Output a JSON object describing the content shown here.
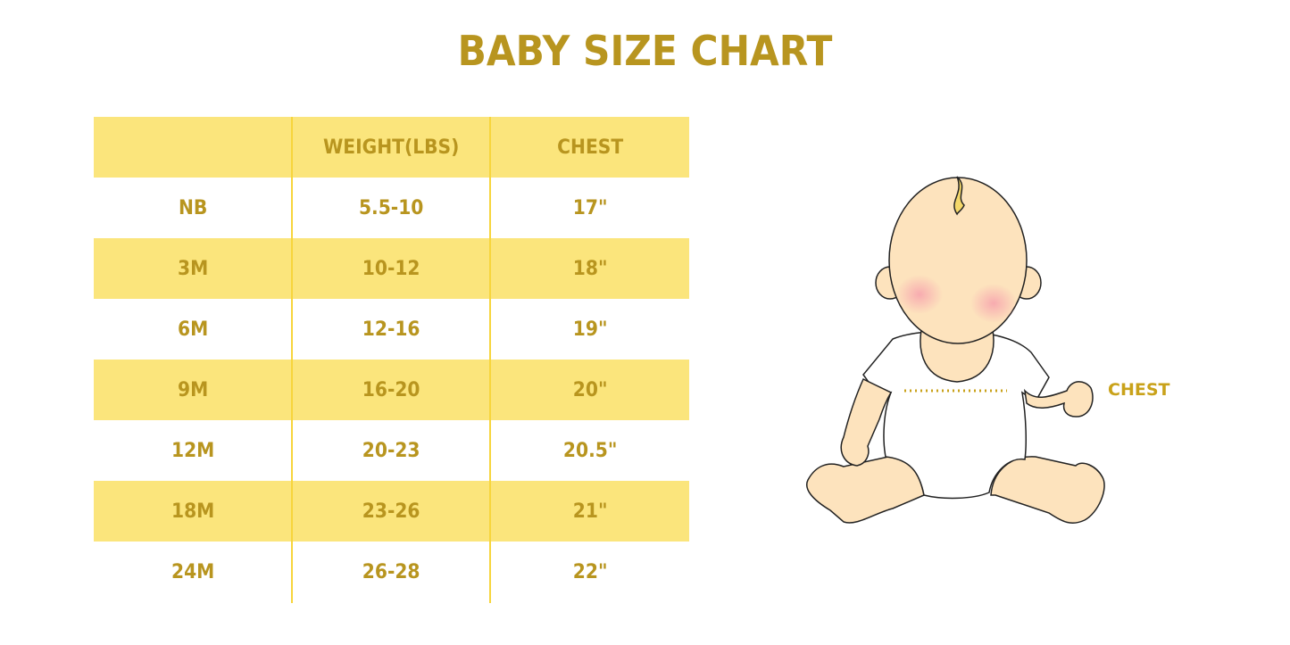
{
  "title": "BABY SIZE CHART",
  "table": {
    "headers": [
      "",
      "WEIGHT(LBS)",
      "CHEST"
    ],
    "rows": [
      [
        "NB",
        "5.5-10",
        "17\""
      ],
      [
        "3M",
        "10-12",
        "18\""
      ],
      [
        "6M",
        "12-16",
        "19\""
      ],
      [
        "9M",
        "16-20",
        "20\""
      ],
      [
        "12M",
        "20-23",
        "20.5\""
      ],
      [
        "18M",
        "23-26",
        "21\""
      ],
      [
        "24M",
        "26-28",
        "22\""
      ]
    ]
  },
  "illustration": {
    "chest_label": "CHEST"
  },
  "colors": {
    "accent_text": "#b8951f",
    "row_highlight": "#fbe57c",
    "divider": "#f7d53c"
  }
}
